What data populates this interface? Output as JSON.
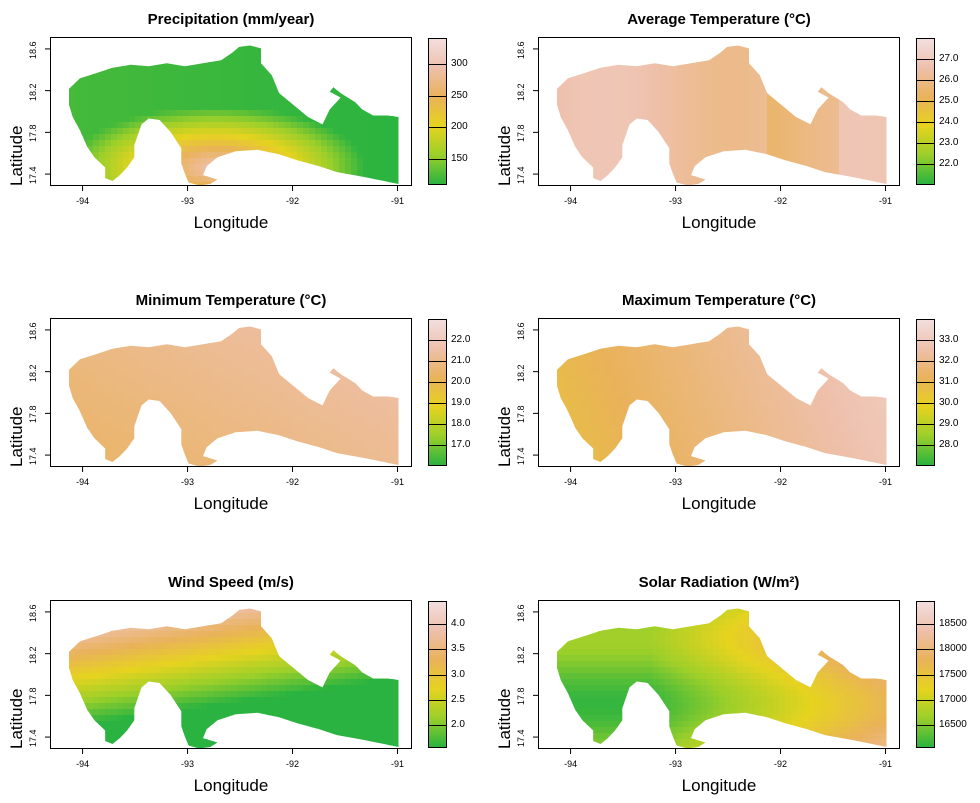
{
  "chart_data": [
    {
      "type": "heatmap",
      "title": "Precipitation (mm/year)",
      "xlabel": "Longitude",
      "ylabel": "Latitude",
      "xticks": [
        "-94",
        "-93",
        "-92",
        "-91"
      ],
      "yticks": [
        "17.4",
        "17.8",
        "18.2",
        "18.6"
      ],
      "legend_ticks": [
        "300",
        "250",
        "200",
        "150"
      ],
      "colors": [
        "#2ab340",
        "#9bcf2a",
        "#e6d31f",
        "#e9b25a",
        "#eec0ab",
        "#f2dede"
      ],
      "value_range": [
        125,
        345
      ]
    },
    {
      "type": "heatmap",
      "title": "Average Temperature (°C)",
      "xlabel": "Longitude",
      "ylabel": "Latitude",
      "xticks": [
        "-94",
        "-93",
        "-92",
        "-91"
      ],
      "yticks": [
        "17.4",
        "17.8",
        "18.2",
        "18.6"
      ],
      "legend_ticks": [
        "27.0",
        "26.0",
        "25.0",
        "24.0",
        "23.0",
        "22.0"
      ],
      "colors": [
        "#2ab340",
        "#9bcf2a",
        "#e6d31f",
        "#e9b25a",
        "#eec0ab",
        "#f2dede"
      ],
      "value_range": [
        21.8,
        27.2
      ]
    },
    {
      "type": "heatmap",
      "title": "Minimum Temperature (°C)",
      "xlabel": "Longitude",
      "ylabel": "Latitude",
      "xticks": [
        "-94",
        "-93",
        "-92",
        "-91"
      ],
      "yticks": [
        "17.4",
        "17.8",
        "18.2",
        "18.6"
      ],
      "legend_ticks": [
        "22.0",
        "21.0",
        "20.0",
        "19.0",
        "18.0",
        "17.0"
      ],
      "colors": [
        "#2ab340",
        "#9bcf2a",
        "#e6d31f",
        "#e9b25a",
        "#eec0ab",
        "#f2dede"
      ],
      "value_range": [
        16.6,
        22.9
      ]
    },
    {
      "type": "heatmap",
      "title": "Maximum Temperature (°C)",
      "xlabel": "Longitude",
      "ylabel": "Latitude",
      "xticks": [
        "-94",
        "-93",
        "-92",
        "-91"
      ],
      "yticks": [
        "17.4",
        "17.8",
        "18.2",
        "18.6"
      ],
      "legend_ticks": [
        "33.0",
        "32.0",
        "31.0",
        "30.0",
        "29.0",
        "28.0"
      ],
      "colors": [
        "#2ab340",
        "#9bcf2a",
        "#e6d31f",
        "#e9b25a",
        "#eec0ab",
        "#f2dede"
      ],
      "value_range": [
        27.3,
        33.1
      ]
    },
    {
      "type": "heatmap",
      "title": "Wind Speed (m/s)",
      "xlabel": "Longitude",
      "ylabel": "Latitude",
      "xticks": [
        "-94",
        "-93",
        "-92",
        "-91"
      ],
      "yticks": [
        "17.4",
        "17.8",
        "18.2",
        "18.6"
      ],
      "legend_ticks": [
        "4.0",
        "3.5",
        "3.0",
        "2.5",
        "2.0"
      ],
      "colors": [
        "#2ab340",
        "#9bcf2a",
        "#e6d31f",
        "#e9b25a",
        "#eec0ab",
        "#f2dede"
      ],
      "value_range": [
        2.0,
        4.1
      ]
    },
    {
      "type": "heatmap",
      "title": "Solar Radiation (W/m²)",
      "xlabel": "Longitude",
      "ylabel": "Latitude",
      "xticks": [
        "-94",
        "-93",
        "-92",
        "-91"
      ],
      "yticks": [
        "17.4",
        "17.8",
        "18.2",
        "18.6"
      ],
      "legend_ticks": [
        "18500",
        "18000",
        "17500",
        "17000",
        "16500"
      ],
      "colors": [
        "#2ab340",
        "#9bcf2a",
        "#e6d31f",
        "#e9b25a",
        "#eec0ab",
        "#f2dede"
      ],
      "value_range": [
        16450,
        18600
      ]
    }
  ]
}
